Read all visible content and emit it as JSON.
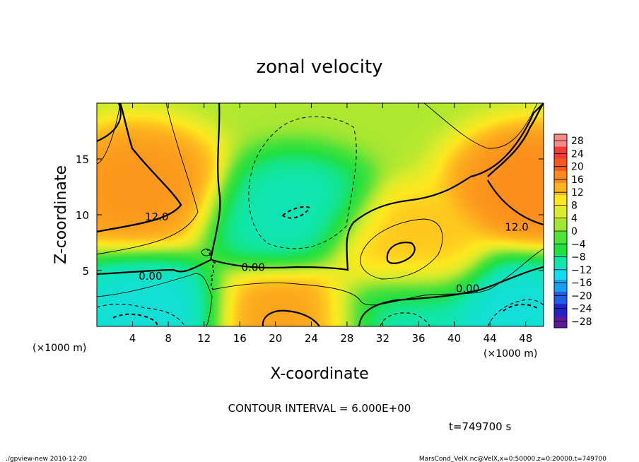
{
  "chart_data": {
    "type": "heatmap",
    "title": "zonal velocity",
    "xlabel": "X-coordinate",
    "ylabel": "Z-coordinate",
    "x_unit": "(×1000 m)",
    "y_unit": "(×1000 m)",
    "xlim": [
      0,
      50
    ],
    "ylim": [
      0,
      20
    ],
    "x_ticks": [
      4,
      8,
      12,
      16,
      20,
      24,
      28,
      32,
      36,
      40,
      44,
      48
    ],
    "y_ticks": [
      5,
      10,
      15
    ],
    "colorbar_levels": [
      28,
      24,
      20,
      16,
      12,
      8,
      4,
      0,
      -4,
      -8,
      -12,
      -16,
      -20,
      -24,
      -28
    ],
    "colorbar_range": [
      -30,
      30
    ],
    "contour_labels": [
      {
        "text": "12.0",
        "x": 6.7,
        "y": 9.8
      },
      {
        "text": "12.0",
        "x": 47.0,
        "y": 8.9
      },
      {
        "text": "0.00",
        "x": 6.0,
        "y": 4.5
      },
      {
        "text": "0.00",
        "x": 17.5,
        "y": 5.3
      },
      {
        "text": "0.00",
        "x": 41.5,
        "y": 3.4
      }
    ],
    "contour_interval": "CONTOUR INTERVAL = 6.000E+00",
    "time_label": "t=749700 s",
    "features": [
      {
        "x": 4.5,
        "y": 12.5,
        "value": 17
      },
      {
        "x": 49,
        "y": 12.5,
        "value": 18
      },
      {
        "x": 34,
        "y": 6.7,
        "value": 13
      },
      {
        "x": 22.5,
        "y": 0.6,
        "value": 16
      },
      {
        "x": 22,
        "y": 9.8,
        "value": -11
      },
      {
        "x": 5,
        "y": 1.0,
        "value": -13
      },
      {
        "x": 47,
        "y": 1.0,
        "value": -13
      },
      {
        "x": 34,
        "y": 0.8,
        "value": -11
      }
    ]
  },
  "footer": {
    "left": "./gpview-new  2010-12-20",
    "right": "MarsCond_VelX.nc@VelX,x=0:50000,z=0:20000,t=749700"
  },
  "colors": {
    "palette": [
      "#5a1a9a",
      "#2222c8",
      "#1f5fe6",
      "#1aa0f0",
      "#14dcf0",
      "#10e6a8",
      "#20e040",
      "#4fe23a",
      "#a0e632",
      "#dcec2a",
      "#ffe81f",
      "#fdb51e",
      "#fb8a1c",
      "#f6591b",
      "#f13a3a",
      "#fa8a8a"
    ]
  }
}
